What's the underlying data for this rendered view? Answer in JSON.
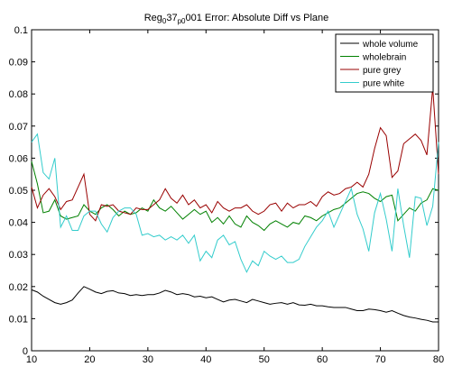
{
  "chart_data": {
    "type": "line",
    "title_parts": [
      {
        "text": "Reg",
        "sub": false
      },
      {
        "text": "0",
        "sub": true
      },
      {
        "text": "37",
        "sub": false
      },
      {
        "text": "p0",
        "sub": true
      },
      {
        "text": "001 Error: Absolute Diff vs Plane",
        "sub": false
      }
    ],
    "xlabel": "",
    "ylabel": "",
    "xlim": [
      10,
      80
    ],
    "ylim": [
      0,
      0.1
    ],
    "xticks": [
      10,
      20,
      30,
      40,
      50,
      60,
      70,
      80
    ],
    "yticks": [
      0,
      0.01,
      0.02,
      0.03,
      0.04,
      0.05,
      0.06,
      0.07,
      0.08,
      0.09,
      0.1
    ],
    "ytick_labels": [
      "0",
      "0.01",
      "0.02",
      "0.03",
      "0.04",
      "0.05",
      "0.06",
      "0.07",
      "0.08",
      "0.09",
      "0.1"
    ],
    "grid": false,
    "legend_position": "top-right",
    "x_start": 10,
    "x_step": 1,
    "series": [
      {
        "name": "whole volume",
        "color": "#000000",
        "values": [
          0.019,
          0.0183,
          0.017,
          0.016,
          0.015,
          0.0145,
          0.015,
          0.0158,
          0.018,
          0.02,
          0.0192,
          0.0183,
          0.0178,
          0.0185,
          0.0187,
          0.018,
          0.0178,
          0.0172,
          0.0175,
          0.0172,
          0.0175,
          0.0175,
          0.018,
          0.0188,
          0.0183,
          0.0175,
          0.0178,
          0.0175,
          0.0168,
          0.017,
          0.0165,
          0.0168,
          0.016,
          0.0152,
          0.0158,
          0.016,
          0.0155,
          0.015,
          0.016,
          0.0155,
          0.015,
          0.0145,
          0.0148,
          0.015,
          0.0145,
          0.015,
          0.0143,
          0.0142,
          0.0145,
          0.014,
          0.014,
          0.0137,
          0.0135,
          0.0135,
          0.0135,
          0.013,
          0.0125,
          0.0125,
          0.013,
          0.0128,
          0.0125,
          0.012,
          0.0125,
          0.0117,
          0.011,
          0.0105,
          0.0102,
          0.0098,
          0.0095,
          0.009,
          0.009
        ]
      },
      {
        "name": "wholebrain",
        "color": "#008000",
        "values": [
          0.059,
          0.052,
          0.043,
          0.0435,
          0.047,
          0.042,
          0.041,
          0.0415,
          0.042,
          0.0455,
          0.0435,
          0.0425,
          0.0445,
          0.0455,
          0.044,
          0.042,
          0.0435,
          0.0425,
          0.043,
          0.0445,
          0.0435,
          0.047,
          0.0445,
          0.0435,
          0.045,
          0.043,
          0.041,
          0.0425,
          0.044,
          0.0425,
          0.0435,
          0.04,
          0.0415,
          0.0395,
          0.042,
          0.0395,
          0.0385,
          0.042,
          0.04,
          0.039,
          0.0375,
          0.0395,
          0.0405,
          0.0395,
          0.0385,
          0.04,
          0.0395,
          0.042,
          0.0415,
          0.0405,
          0.042,
          0.043,
          0.044,
          0.0445,
          0.046,
          0.0475,
          0.049,
          0.0495,
          0.049,
          0.0475,
          0.0465,
          0.048,
          0.0485,
          0.0405,
          0.0425,
          0.0445,
          0.0435,
          0.046,
          0.047,
          0.0505,
          0.05
        ]
      },
      {
        "name": "pure grey",
        "color": "#990000",
        "values": [
          0.051,
          0.0445,
          0.0485,
          0.0505,
          0.048,
          0.044,
          0.0465,
          0.047,
          0.051,
          0.055,
          0.0425,
          0.0405,
          0.0455,
          0.045,
          0.0455,
          0.0435,
          0.043,
          0.0425,
          0.0445,
          0.044,
          0.044,
          0.0455,
          0.047,
          0.0505,
          0.0475,
          0.046,
          0.0485,
          0.0455,
          0.047,
          0.0445,
          0.0455,
          0.043,
          0.0465,
          0.0445,
          0.0435,
          0.0445,
          0.0445,
          0.0455,
          0.0435,
          0.0425,
          0.0435,
          0.0455,
          0.046,
          0.0435,
          0.046,
          0.0445,
          0.0455,
          0.0455,
          0.0465,
          0.045,
          0.048,
          0.0495,
          0.0485,
          0.049,
          0.0505,
          0.051,
          0.0525,
          0.051,
          0.055,
          0.063,
          0.0695,
          0.067,
          0.054,
          0.056,
          0.0645,
          0.066,
          0.0675,
          0.0655,
          0.061,
          0.082,
          0.055
        ]
      },
      {
        "name": "pure white",
        "color": "#33cccc",
        "values": [
          0.065,
          0.0675,
          0.0555,
          0.0535,
          0.06,
          0.0385,
          0.042,
          0.0375,
          0.0375,
          0.042,
          0.0435,
          0.0435,
          0.0395,
          0.037,
          0.0415,
          0.0435,
          0.0445,
          0.0445,
          0.0425,
          0.036,
          0.0365,
          0.0355,
          0.036,
          0.0345,
          0.0355,
          0.0345,
          0.036,
          0.0335,
          0.036,
          0.028,
          0.031,
          0.029,
          0.0345,
          0.036,
          0.033,
          0.034,
          0.0285,
          0.0245,
          0.028,
          0.0265,
          0.031,
          0.0295,
          0.0285,
          0.0295,
          0.0275,
          0.0275,
          0.0285,
          0.0325,
          0.0355,
          0.0385,
          0.0405,
          0.0435,
          0.0385,
          0.0425,
          0.0465,
          0.0505,
          0.0425,
          0.038,
          0.031,
          0.043,
          0.049,
          0.041,
          0.031,
          0.0505,
          0.039,
          0.029,
          0.048,
          0.0475,
          0.039,
          0.045,
          0.065
        ]
      }
    ]
  }
}
